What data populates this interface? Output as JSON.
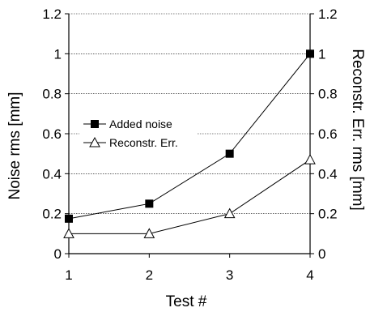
{
  "chart_data": {
    "type": "line",
    "title": "",
    "xlabel": "Test #",
    "ylabel": "Noise rms [mm]",
    "y2label": "Reconstr. Err. rms [mm]",
    "categories": [
      1,
      2,
      3,
      4
    ],
    "x_tick_labels": [
      "1",
      "2",
      "3",
      "4"
    ],
    "ylim": [
      0,
      1.2
    ],
    "y2lim": [
      0,
      1.2
    ],
    "y_ticks": [
      0,
      0.2,
      0.4,
      0.6,
      0.8,
      1,
      1.2
    ],
    "y_tick_labels": [
      "0",
      "0.2",
      "0.4",
      "0.6",
      "0.8",
      "1",
      "1.2"
    ],
    "grid": true,
    "legend_position": "center-left",
    "series": [
      {
        "name": "Added noise",
        "marker": "filled-square",
        "axis": "left",
        "values": [
          0.175,
          0.25,
          0.5,
          1.0
        ]
      },
      {
        "name": "Reconstr. Err.",
        "marker": "open-triangle",
        "axis": "right",
        "values": [
          0.1,
          0.1,
          0.2,
          0.47
        ]
      }
    ],
    "colors": {
      "line": "#000000",
      "grid": "#000000",
      "background": "#ffffff"
    }
  }
}
